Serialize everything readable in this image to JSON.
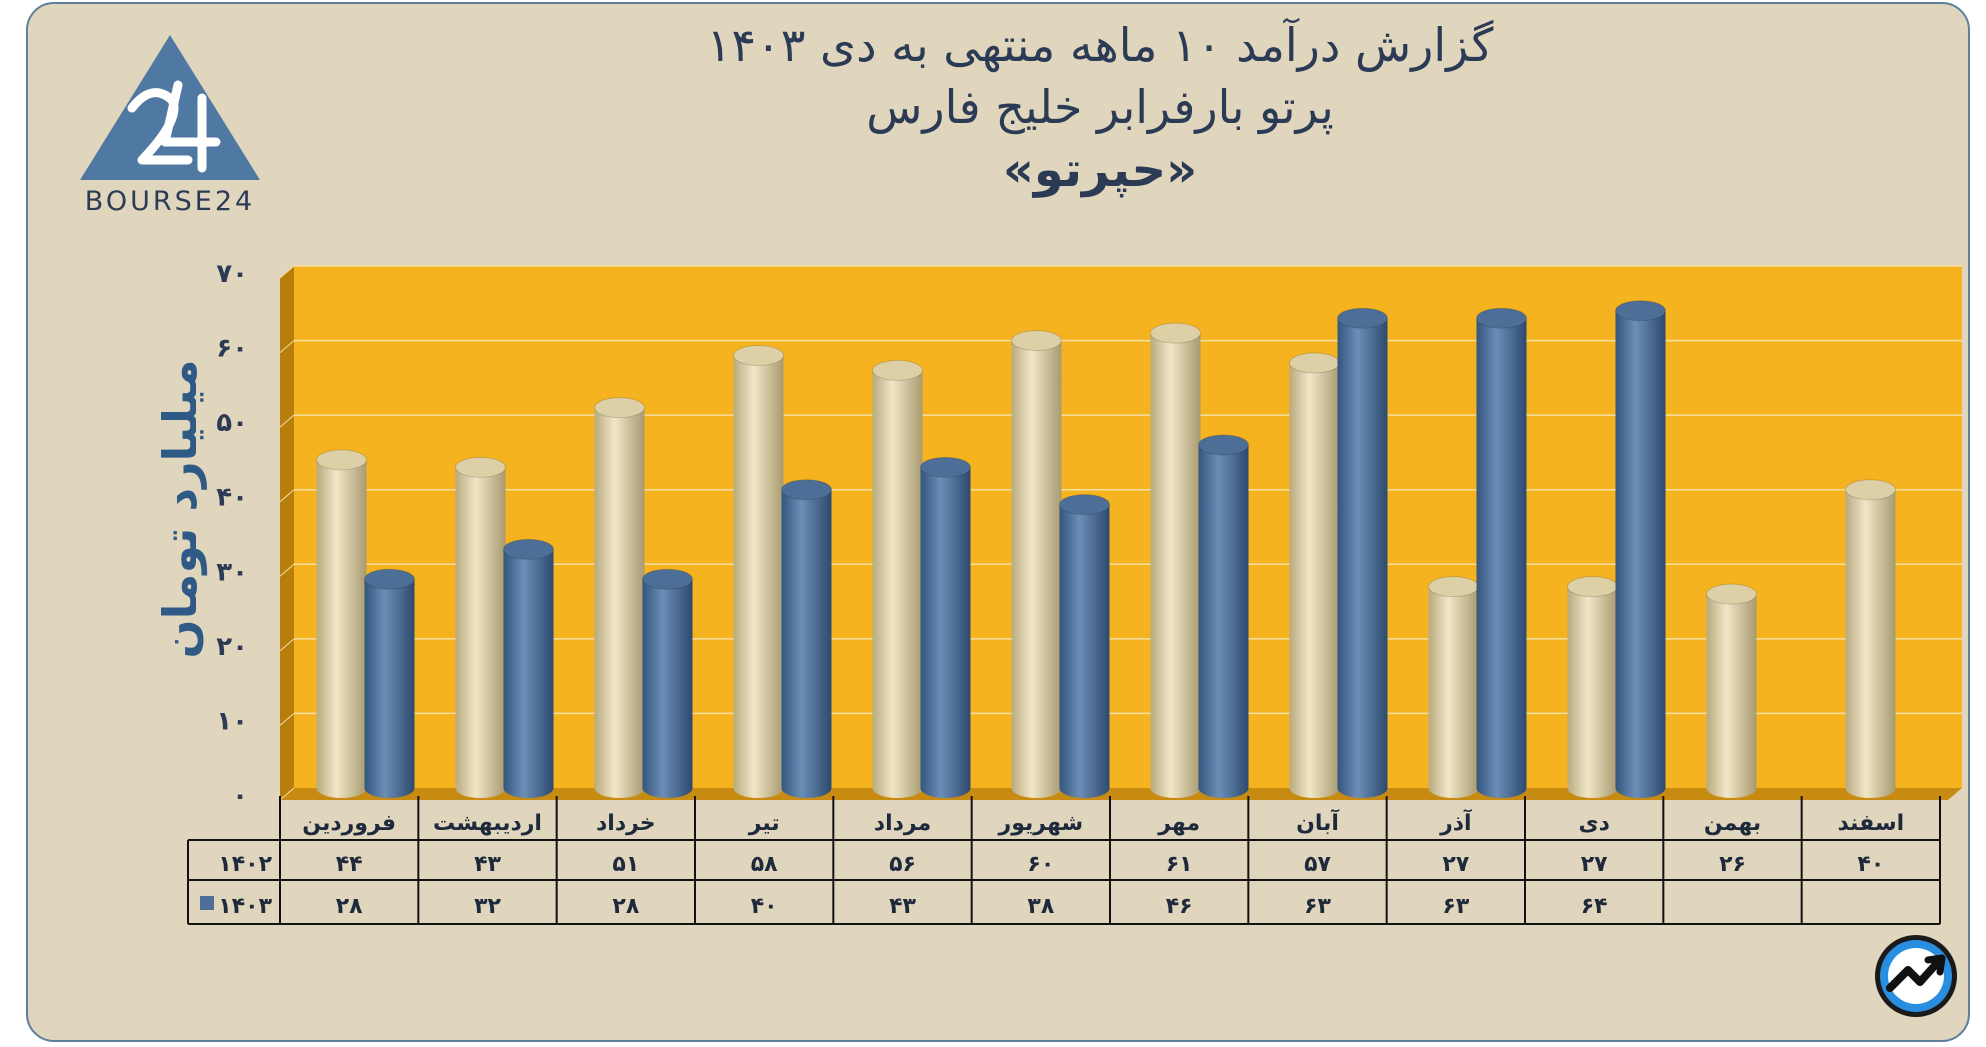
{
  "title": {
    "line1": "گزارش  درآمد ۱۰ ماهه منتهی به دی ۱۴۰۳",
    "line2": "پرتو بارفرابر خلیج فارس",
    "line3": "«حپرتو»"
  },
  "logo": {
    "text": "BOURSE24",
    "icon": "bourse24-triangle-logo"
  },
  "corner_icon": "trend-arrow-icon",
  "colors": {
    "plot_bg": "#f5b31f",
    "series_1402": "#ddd0a6",
    "series_1403": "#4d6f97",
    "title": "#2c3b55",
    "ylabel": "#2f5a86"
  },
  "chart_data": {
    "type": "bar",
    "ylabel": "میلیارد تومان",
    "ylim": [
      0,
      70
    ],
    "yticks": [
      "۰",
      "۱۰",
      "۲۰",
      "۳۰",
      "۴۰",
      "۵۰",
      "۶۰",
      "۷۰"
    ],
    "categories": [
      "فروردین",
      "اردیبهشت",
      "خرداد",
      "تیر",
      "مرداد",
      "شهریور",
      "مهر",
      "آبان",
      "آذر",
      "دی",
      "بهمن",
      "اسفند"
    ],
    "series": [
      {
        "name": "۱۴۰۲",
        "values": [
          44,
          43,
          51,
          58,
          56,
          60,
          61,
          57,
          27,
          27,
          26,
          40
        ],
        "labels": [
          "۴۴",
          "۴۳",
          "۵۱",
          "۵۸",
          "۵۶",
          "۶۰",
          "۶۱",
          "۵۷",
          "۲۷",
          "۲۷",
          "۲۶",
          "۴۰"
        ]
      },
      {
        "name": "۱۴۰۳",
        "values": [
          28,
          32,
          28,
          40,
          43,
          38,
          46,
          63,
          63,
          64,
          null,
          null
        ],
        "labels": [
          "۲۸",
          "۳۲",
          "۲۸",
          "۴۰",
          "۴۳",
          "۳۸",
          "۴۶",
          "۶۳",
          "۶۳",
          "۶۴",
          "",
          ""
        ]
      }
    ],
    "grid": true,
    "legend": "in-table"
  }
}
